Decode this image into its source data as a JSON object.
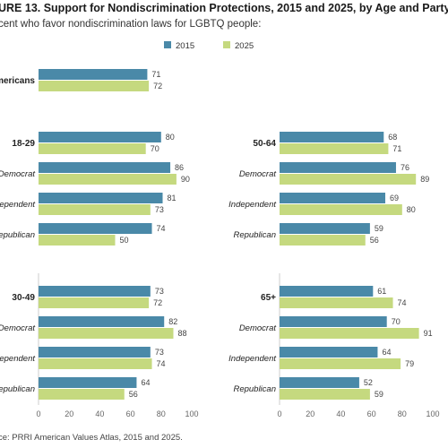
{
  "title": "URE 13.  Support for Nondiscrimination Protections, 2015 and 2025, by Age and Party",
  "subtitle": "cent who favor nondiscrimination laws for LGBTQ people:",
  "source": "ce: PRRI American Values Atlas, 2015 and 2025.",
  "colors": {
    "series_2015": "#4a89a8",
    "series_2025": "#c5d97f",
    "axis": "#cccccc"
  },
  "chart_data": {
    "type": "bar",
    "orientation": "horizontal",
    "title": "URE 13.  Support for Nondiscrimination Protections, 2015 and 2025, by Age and Party",
    "subtitle": "cent who favor nondiscrimination laws for LGBTQ people:",
    "legend": [
      "2015",
      "2025"
    ],
    "legend_position": "top-center",
    "xlim": [
      0,
      100
    ],
    "xticks": [
      0,
      20,
      40,
      60,
      80,
      100
    ],
    "grid": false,
    "panels": [
      {
        "id": "all",
        "categories": [
          {
            "label": "Americans",
            "style": "bold",
            "v2015": 71,
            "v2025": 72
          }
        ]
      },
      {
        "id": "18-29",
        "categories": [
          {
            "label": "18-29",
            "style": "bold",
            "v2015": 80,
            "v2025": 70
          },
          {
            "label": "Democrat",
            "style": "italic",
            "v2015": 86,
            "v2025": 90
          },
          {
            "label": "Independent",
            "style": "italic",
            "v2015": 81,
            "v2025": 73
          },
          {
            "label": "Republican",
            "style": "italic",
            "v2015": 74,
            "v2025": 50
          }
        ]
      },
      {
        "id": "50-64",
        "categories": [
          {
            "label": "50-64",
            "style": "bold",
            "v2015": 68,
            "v2025": 71
          },
          {
            "label": "Democrat",
            "style": "italic",
            "v2015": 76,
            "v2025": 89
          },
          {
            "label": "Independent",
            "style": "italic",
            "v2015": 69,
            "v2025": 80
          },
          {
            "label": "Republican",
            "style": "italic",
            "v2015": 59,
            "v2025": 56
          }
        ]
      },
      {
        "id": "30-49",
        "categories": [
          {
            "label": "30-49",
            "style": "bold",
            "v2015": 73,
            "v2025": 72
          },
          {
            "label": "Democrat",
            "style": "italic",
            "v2015": 82,
            "v2025": 88
          },
          {
            "label": "Independent",
            "style": "italic",
            "v2015": 73,
            "v2025": 74
          },
          {
            "label": "Republican",
            "style": "italic",
            "v2015": 64,
            "v2025": 56
          }
        ]
      },
      {
        "id": "65+",
        "categories": [
          {
            "label": "65+",
            "style": "bold",
            "v2015": 61,
            "v2025": 74
          },
          {
            "label": "Democrat",
            "style": "italic",
            "v2015": 70,
            "v2025": 91
          },
          {
            "label": "Independent",
            "style": "italic",
            "v2015": 64,
            "v2025": 79
          },
          {
            "label": "Republican",
            "style": "italic",
            "v2015": 52,
            "v2025": 59
          }
        ]
      }
    ]
  }
}
